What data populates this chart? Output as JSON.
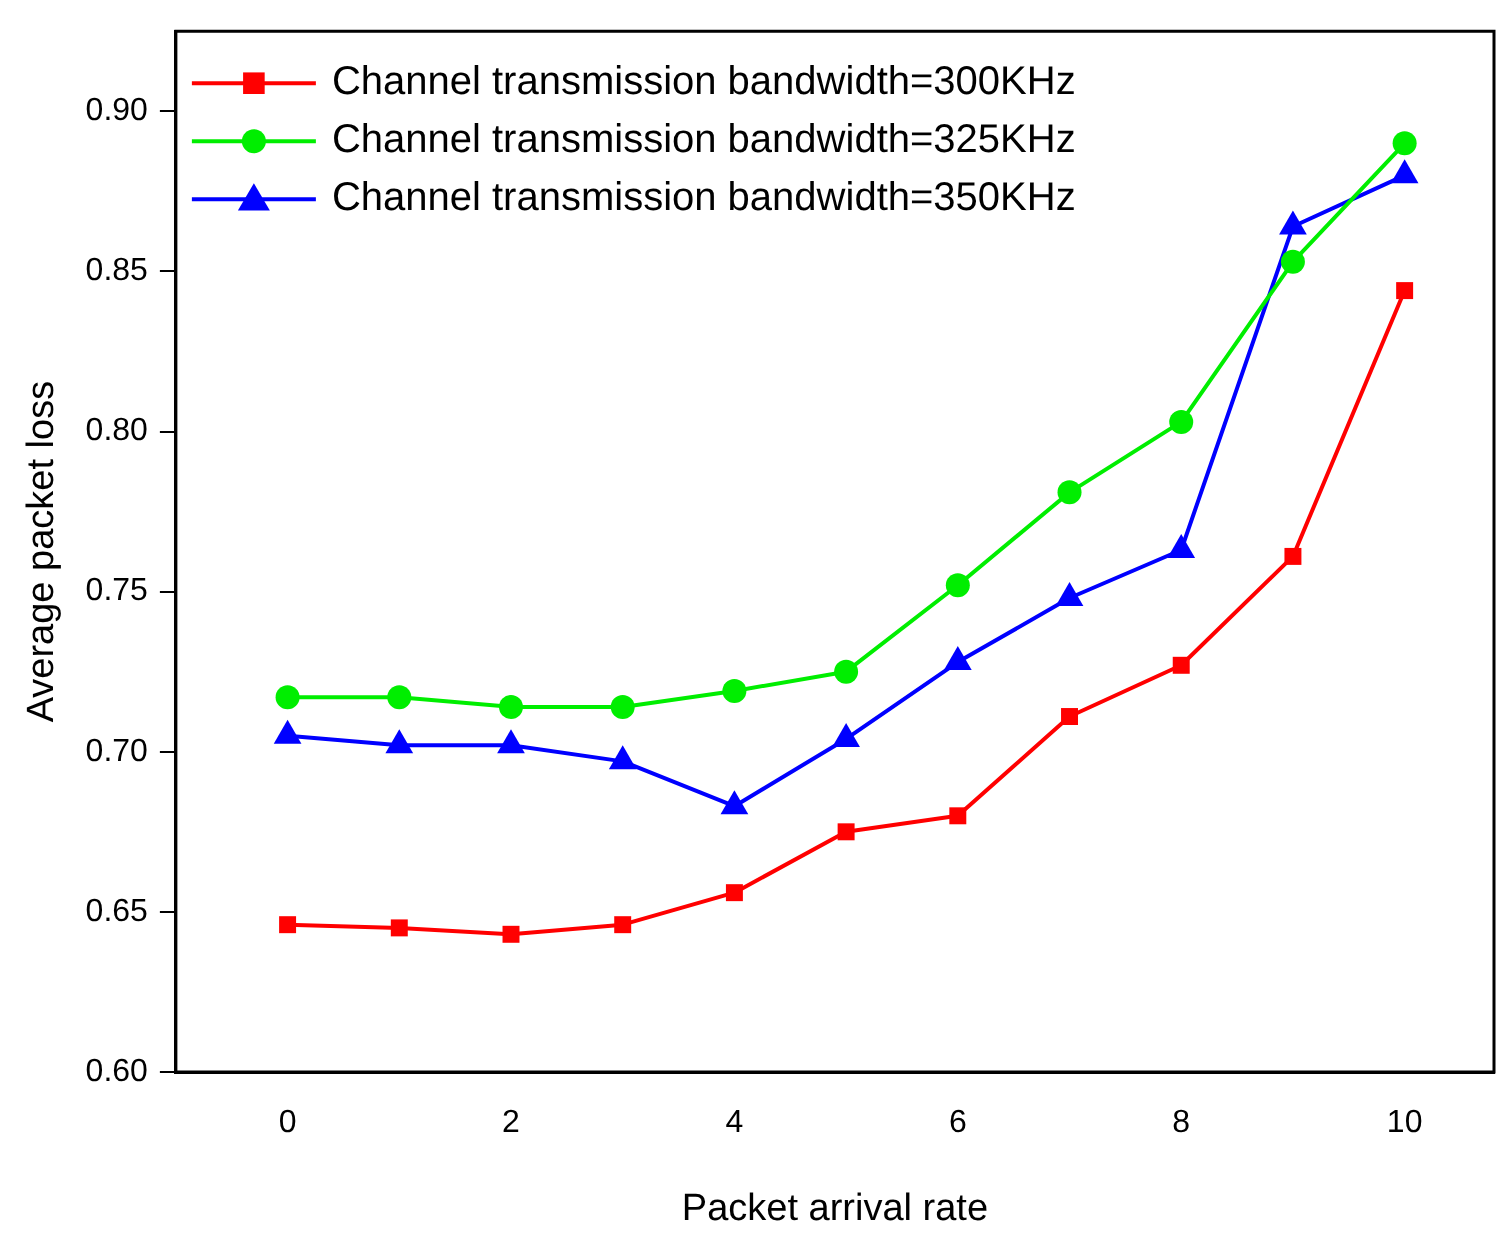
{
  "chart_data": {
    "type": "line",
    "xlabel": "Packet arrival rate",
    "ylabel": "Average packet loss",
    "x": [
      0,
      1,
      2,
      3,
      4,
      5,
      6,
      7,
      8,
      9,
      10
    ],
    "series": [
      {
        "name": "Channel transmission bandwidth=300KHz",
        "color": "#ff0000",
        "marker": "square",
        "values": [
          0.646,
          0.645,
          0.643,
          0.646,
          0.656,
          0.675,
          0.68,
          0.711,
          0.727,
          0.761,
          0.844
        ]
      },
      {
        "name": "Channel transmission bandwidth=325KHz",
        "color": "#00ee00",
        "marker": "circle",
        "values": [
          0.717,
          0.717,
          0.714,
          0.714,
          0.719,
          0.725,
          0.752,
          0.781,
          0.803,
          0.853,
          0.89
        ]
      },
      {
        "name": "Channel transmission bandwidth=350KHz",
        "color": "#0000ff",
        "marker": "triangle",
        "values": [
          0.705,
          0.702,
          0.702,
          0.697,
          0.683,
          0.704,
          0.728,
          0.748,
          0.763,
          0.864,
          0.88
        ]
      }
    ],
    "xlim": [
      -1,
      10.8
    ],
    "xticks": [
      0,
      2,
      4,
      6,
      8,
      10
    ],
    "ylim": [
      0.6,
      0.925
    ],
    "yticks": [
      {
        "value": 0.6,
        "label": "0.60"
      },
      {
        "value": 0.65,
        "label": "0.65"
      },
      {
        "value": 0.7,
        "label": "0.70"
      },
      {
        "value": 0.75,
        "label": "0.75"
      },
      {
        "value": 0.8,
        "label": "0.80"
      },
      {
        "value": 0.85,
        "label": "0.85"
      },
      {
        "value": 0.9,
        "label": "0.90"
      }
    ],
    "grid": false,
    "legend": "top left",
    "line_style": "solid"
  }
}
